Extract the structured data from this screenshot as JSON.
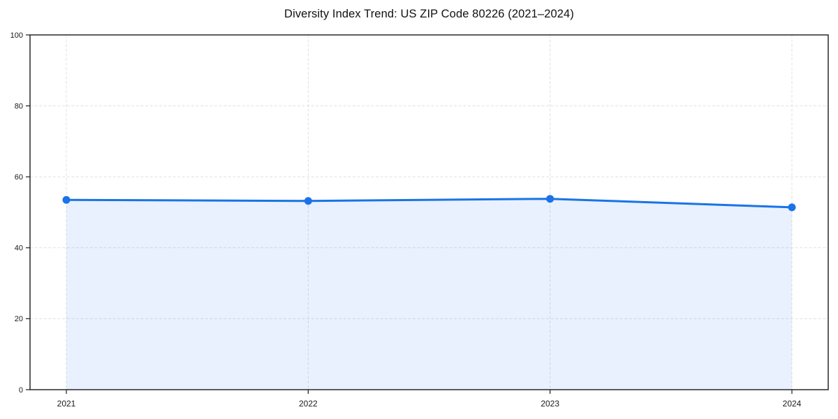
{
  "page": {
    "background_color": "#ffffff"
  },
  "chart_data": {
    "type": "line",
    "title": "Diversity Index Trend: US ZIP Code 80226 (2021–2024)",
    "categories": [
      "2021",
      "2022",
      "2023",
      "2024"
    ],
    "values": [
      53.5,
      53.2,
      53.8,
      51.4
    ],
    "xlabel": "",
    "ylabel": "",
    "ylim": [
      0,
      100
    ],
    "yticks": [
      0,
      20,
      40,
      60,
      80,
      100
    ],
    "grid": "dashed-both-axes",
    "legend": "none",
    "marker": "circle",
    "area_fill": true,
    "colors": {
      "line": "#1a73e8",
      "marker": "#1a73e8",
      "fill": "rgba(26,115,232,0.10)",
      "grid": "#e0e0e0",
      "axis": "#1a1a1a",
      "tick_text": "#1a1a1a"
    }
  }
}
